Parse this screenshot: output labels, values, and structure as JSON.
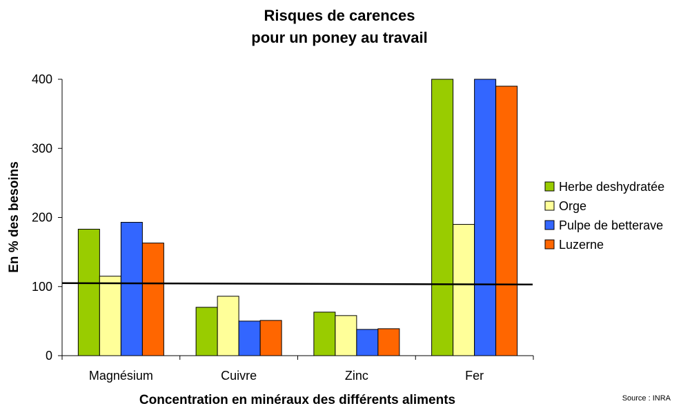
{
  "chart_data": {
    "type": "bar",
    "title_line1": "Risques de carences",
    "title_line2": "pour un poney au travail",
    "xlabel": "Concentration en minéraux des différents aliments",
    "ylabel": "En % des besoins",
    "ylim": [
      0,
      400
    ],
    "yticks": [
      0,
      100,
      200,
      300,
      400
    ],
    "grid": false,
    "legend_position": "right",
    "reference_line": 105,
    "categories": [
      "Magnésium",
      "Cuivre",
      "Zinc",
      "Fer"
    ],
    "series": [
      {
        "name": "Herbe deshydratée",
        "color": "#99cc00",
        "values": [
          183,
          70,
          63,
          400
        ]
      },
      {
        "name": "Orge",
        "color": "#ffff99",
        "values": [
          115,
          86,
          58,
          190
        ]
      },
      {
        "name": "Pulpe de betterave",
        "color": "#3366ff",
        "values": [
          193,
          50,
          38,
          400
        ]
      },
      {
        "name": "Luzerne",
        "color": "#ff6600",
        "values": [
          163,
          51,
          39,
          390
        ]
      }
    ]
  },
  "source": "Source : INRA"
}
